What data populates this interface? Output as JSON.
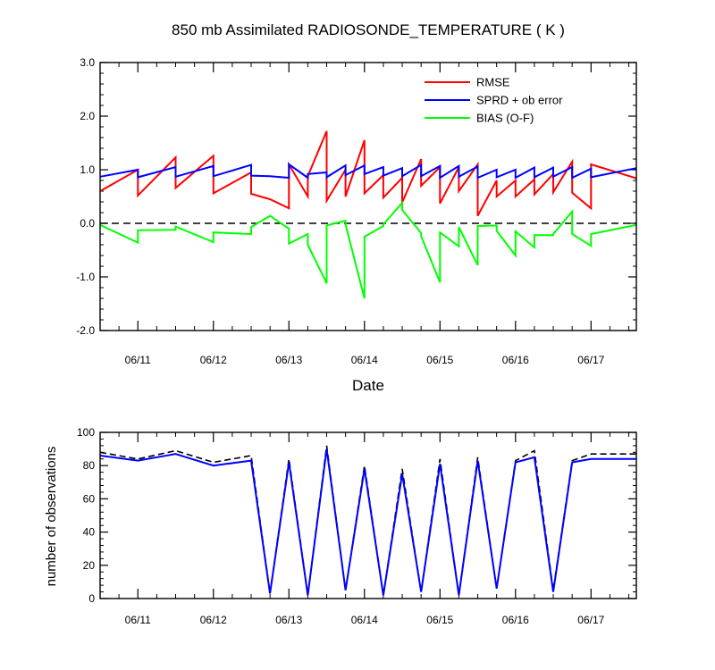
{
  "chart_data": [
    {
      "type": "line",
      "title": "850 mb Assimilated RADIOSONDE_TEMPERATURE ( K )",
      "xlabel": "Date",
      "ylabel": "",
      "xlim": [
        0,
        7.1
      ],
      "ylim": [
        -2.0,
        3.0
      ],
      "x_tick_values": [
        0.5,
        1.5,
        2.5,
        3.5,
        4.5,
        5.5,
        6.5
      ],
      "x_tick_labels": [
        "06/11",
        "06/12",
        "06/13",
        "06/14",
        "06/15",
        "06/16",
        "06/17"
      ],
      "y_tick_values": [
        -2.0,
        -1.0,
        0.0,
        1.0,
        2.0,
        3.0
      ],
      "y_tick_labels": [
        "-2.0",
        "-1.0",
        "0.0",
        "1.0",
        "2.0",
        "3.0"
      ],
      "legend_position": "top-right",
      "reference_line": {
        "y": 0.0,
        "style": "dashed",
        "color": "#000000"
      },
      "series": [
        {
          "name": "RMSE",
          "color": "#ff0000",
          "x": [
            0,
            0.5,
            0.5,
            1.0,
            1.0,
            1.5,
            1.5,
            2.0,
            2.0,
            2.25,
            2.5,
            2.5,
            2.75,
            2.75,
            3.0,
            3.0,
            3.25,
            3.25,
            3.5,
            3.5,
            3.75,
            3.75,
            4.0,
            4.0,
            4.25,
            4.25,
            4.5,
            4.5,
            4.75,
            4.75,
            5.0,
            5.0,
            5.25,
            5.25,
            5.5,
            5.5,
            5.75,
            5.75,
            6.0,
            6.0,
            6.25,
            6.25,
            6.5,
            6.5,
            7.1
          ],
          "y": [
            0.6,
            1.0,
            0.52,
            1.23,
            0.66,
            1.26,
            0.56,
            0.95,
            0.55,
            0.45,
            0.28,
            1.1,
            0.5,
            0.88,
            1.72,
            0.42,
            1.0,
            0.5,
            1.55,
            0.56,
            0.9,
            0.48,
            0.85,
            0.39,
            1.2,
            0.7,
            1.05,
            0.37,
            1.05,
            0.6,
            1.1,
            0.14,
            0.8,
            0.5,
            0.8,
            0.5,
            0.82,
            0.54,
            0.92,
            0.58,
            1.15,
            0.57,
            0.28,
            1.1,
            0.84
          ]
        },
        {
          "name": "SPRD + ob error",
          "color": "#0000ff",
          "x": [
            0,
            0.5,
            0.5,
            1.0,
            1.0,
            1.5,
            1.5,
            2.0,
            2.0,
            2.25,
            2.5,
            2.5,
            2.75,
            2.75,
            3.0,
            3.0,
            3.25,
            3.25,
            3.5,
            3.5,
            3.75,
            3.75,
            4.0,
            4.0,
            4.25,
            4.25,
            4.5,
            4.5,
            4.75,
            4.75,
            5.0,
            5.0,
            5.25,
            5.25,
            5.5,
            5.5,
            5.75,
            5.75,
            6.0,
            6.0,
            6.25,
            6.25,
            6.5,
            6.5,
            7.1
          ],
          "y": [
            0.87,
            1.0,
            0.86,
            1.05,
            0.87,
            1.07,
            0.88,
            1.09,
            0.89,
            0.88,
            0.85,
            1.1,
            0.85,
            0.92,
            0.95,
            0.86,
            1.08,
            0.9,
            1.08,
            0.92,
            1.05,
            0.89,
            1.03,
            0.88,
            1.09,
            0.88,
            1.07,
            0.85,
            1.07,
            0.87,
            1.06,
            0.85,
            1.0,
            0.86,
            1.0,
            0.85,
            1.04,
            0.86,
            1.04,
            0.87,
            1.05,
            0.85,
            1.02,
            0.86,
            1.03
          ]
        },
        {
          "name": "BIAS (O-F)",
          "color": "#00ff00",
          "x": [
            0,
            0.5,
            0.5,
            1.0,
            1.0,
            1.5,
            1.5,
            2.0,
            2.0,
            2.25,
            2.5,
            2.5,
            2.75,
            2.75,
            3.0,
            3.0,
            3.25,
            3.25,
            3.5,
            3.5,
            3.75,
            3.75,
            4.0,
            4.0,
            4.25,
            4.25,
            4.5,
            4.5,
            4.75,
            4.75,
            5.0,
            5.0,
            5.25,
            5.25,
            5.5,
            5.5,
            5.75,
            5.75,
            6.0,
            6.0,
            6.25,
            6.25,
            6.5,
            6.5,
            7.1
          ],
          "y": [
            -0.03,
            -0.36,
            -0.13,
            -0.12,
            -0.06,
            -0.35,
            -0.17,
            -0.2,
            -0.07,
            0.14,
            -0.1,
            -0.38,
            -0.2,
            -0.4,
            -1.12,
            -0.04,
            0.05,
            -0.02,
            -1.4,
            -0.25,
            -0.05,
            -0.02,
            0.38,
            0.25,
            -0.18,
            -0.24,
            -1.1,
            -0.17,
            -0.43,
            -0.07,
            -0.78,
            -0.05,
            -0.04,
            -0.14,
            -0.6,
            -0.15,
            -0.45,
            -0.22,
            -0.22,
            -0.2,
            0.22,
            -0.2,
            -0.42,
            -0.2,
            -0.03
          ]
        }
      ]
    },
    {
      "type": "line",
      "title": "",
      "xlabel": "",
      "ylabel": "number of observations",
      "xlim": [
        0,
        7.1
      ],
      "ylim": [
        0,
        100
      ],
      "x_tick_values": [
        0.5,
        1.5,
        2.5,
        3.5,
        4.5,
        5.5,
        6.5
      ],
      "x_tick_labels": [
        "06/11",
        "06/12",
        "06/13",
        "06/14",
        "06/15",
        "06/16",
        "06/17"
      ],
      "y_tick_values": [
        0,
        20,
        40,
        60,
        80,
        100
      ],
      "y_tick_labels": [
        "0",
        "20",
        "40",
        "60",
        "80",
        "100"
      ],
      "series": [
        {
          "name": "",
          "color": "#000000",
          "style": "dashed",
          "x": [
            0,
            0.5,
            1.0,
            1.5,
            2.0,
            2.25,
            2.5,
            2.75,
            3.0,
            3.25,
            3.5,
            3.75,
            4.0,
            4.25,
            4.5,
            4.75,
            5.0,
            5.25,
            5.5,
            5.75,
            6.0,
            6.25,
            6.5,
            7.1
          ],
          "y": [
            88,
            84,
            89,
            82,
            86,
            3,
            84,
            2,
            92,
            5,
            80,
            2,
            78,
            4,
            84,
            2,
            85,
            6,
            83,
            89,
            5,
            83,
            87,
            87
          ]
        },
        {
          "name": "",
          "color": "#0000ff",
          "style": "solid",
          "x": [
            0,
            0.5,
            1.0,
            1.5,
            2.0,
            2.25,
            2.5,
            2.75,
            3.0,
            3.25,
            3.5,
            3.75,
            4.0,
            4.25,
            4.5,
            4.75,
            5.0,
            5.25,
            5.5,
            5.75,
            6.0,
            6.25,
            6.5,
            7.1
          ],
          "y": [
            86,
            83,
            87,
            80,
            83,
            3,
            82,
            2,
            90,
            5,
            78,
            2,
            75,
            4,
            81,
            2,
            83,
            6,
            82,
            85,
            4,
            82,
            84,
            84
          ]
        }
      ]
    }
  ]
}
